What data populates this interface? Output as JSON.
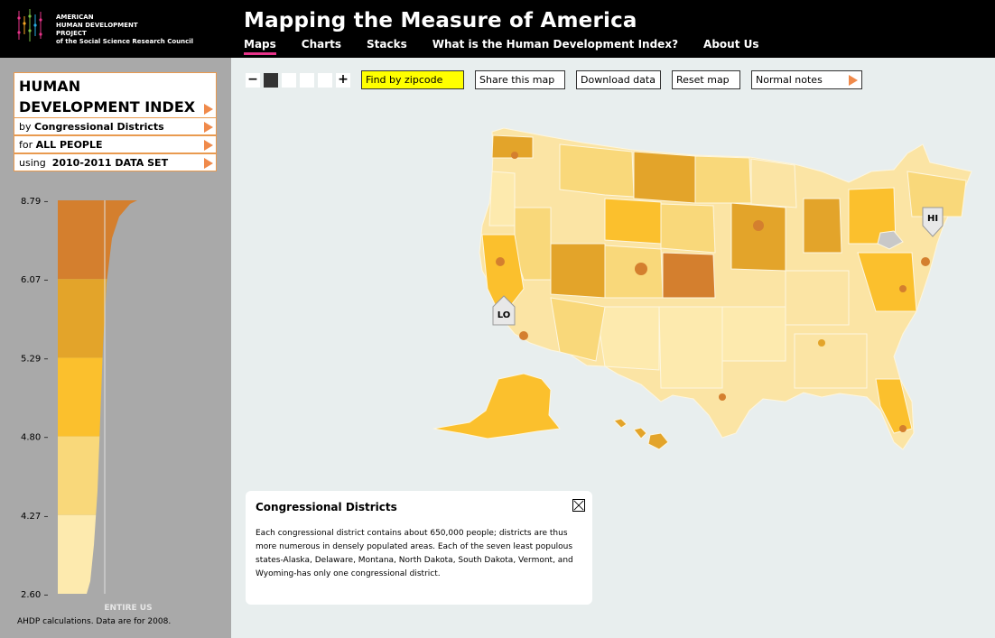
{
  "header": {
    "logo_lines": [
      "AMERICAN",
      "HUMAN DEVELOPMENT",
      "PROJECT",
      "of the Social Science Research Council"
    ],
    "title": "Mapping the Measure of America",
    "nav": [
      {
        "label": "Maps",
        "active": true
      },
      {
        "label": "Charts",
        "active": false
      },
      {
        "label": "Stacks",
        "active": false
      },
      {
        "label": "What is the Human Development Index?",
        "active": false
      },
      {
        "label": "About Us",
        "active": false
      }
    ]
  },
  "sidebar": {
    "index_title": "HUMAN DEVELOPMENT INDEX",
    "by_prefix": "by",
    "by_value": "Congressional Districts",
    "for_prefix": "for",
    "for_value": "ALL PEOPLE",
    "using_prefix": "using",
    "using_value": "2010-2011 DATA SET",
    "note": "AHDP calculations. Data are for 2008."
  },
  "chart_data": {
    "type": "area",
    "title": "",
    "y_ticks": [
      "8.79",
      "6.07",
      "5.29",
      "4.80",
      "4.27",
      "2.60"
    ],
    "x_label": "ENTIRE US",
    "bands": [
      {
        "from": "6.07",
        "to": "8.79",
        "color": "#d47f2e"
      },
      {
        "from": "5.29",
        "to": "6.07",
        "color": "#e3a42a"
      },
      {
        "from": "4.80",
        "to": "5.29",
        "color": "#fbc02d"
      },
      {
        "from": "4.27",
        "to": "4.80",
        "color": "#f9d87a"
      },
      {
        "from": "2.60",
        "to": "4.27",
        "color": "#fdeaae"
      }
    ]
  },
  "toolbar": {
    "zoom_out": "−",
    "zoom_in": "+",
    "zoom_steps": 4,
    "zoom_level": 1,
    "find_zip": "Find by zipcode",
    "share": "Share this map",
    "download": "Download data",
    "reset": "Reset map",
    "notes": "Normal notes"
  },
  "map": {
    "markers": [
      "HI",
      "LO"
    ]
  },
  "info": {
    "title": "Congressional Districts",
    "body": "Each congressional district contains about 650,000 people; districts are thus more numerous in densely populated areas. Each of the seven least populous states-Alaska, Delaware, Montana, North Dakota, South Dakota, Vermont, and Wyoming-has only one congressional district."
  }
}
